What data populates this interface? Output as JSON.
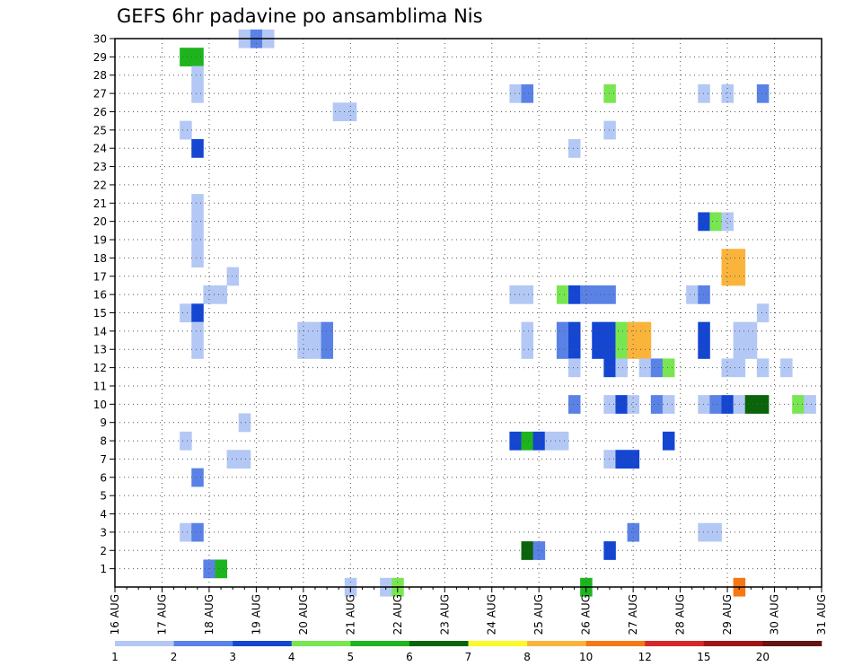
{
  "chart_data": {
    "type": "heatmap",
    "title": "GEFS 6hr padavine po ansamblima Nis",
    "xlabel": "",
    "ylabel": "",
    "x_tick_labels": [
      "16 AUG",
      "17 AUG",
      "18 AUG",
      "19 AUG",
      "20 AUG",
      "21 AUG",
      "22 AUG",
      "23 AUG",
      "24 AUG",
      "25 AUG",
      "26 AUG",
      "27 AUG",
      "28 AUG",
      "29 AUG",
      "30 AUG",
      "31 AUG"
    ],
    "x_range_days": [
      16,
      31
    ],
    "y_tick_labels": [
      "1",
      "2",
      "3",
      "4",
      "5",
      "6",
      "7",
      "8",
      "9",
      "10",
      "11",
      "12",
      "13",
      "14",
      "15",
      "16",
      "17",
      "18",
      "19",
      "20",
      "21",
      "22",
      "23",
      "24",
      "25",
      "26",
      "27",
      "28",
      "29",
      "30"
    ],
    "grid": true,
    "legend": {
      "placement": "bottom",
      "labels": [
        "1",
        "2",
        "3",
        "4",
        "5",
        "6",
        "7",
        "8",
        "10",
        "12",
        "15",
        "20"
      ],
      "colors": [
        "#b4c8f5",
        "#5a82e6",
        "#1446d2",
        "#78e650",
        "#1eb41e",
        "#0a640a",
        "#fafa28",
        "#fab43c",
        "#f57814",
        "#d72828",
        "#a01414",
        "#641414"
      ]
    },
    "cells_note_units": "x = forecast day (AUG, fractional, 6-hr step), y = ensemble member, level = legend color index",
    "cells": [
      {
        "x": 18.75,
        "y": 30,
        "level": 1
      },
      {
        "x": 19.0,
        "y": 30,
        "level": 2
      },
      {
        "x": 19.25,
        "y": 30,
        "level": 1
      },
      {
        "x": 17.5,
        "y": 29,
        "level": 5
      },
      {
        "x": 17.75,
        "y": 29,
        "level": 5
      },
      {
        "x": 17.75,
        "y": 28,
        "level": 1
      },
      {
        "x": 17.75,
        "y": 27,
        "level": 1
      },
      {
        "x": 24.5,
        "y": 27,
        "level": 1
      },
      {
        "x": 24.75,
        "y": 27,
        "level": 2
      },
      {
        "x": 26.5,
        "y": 27,
        "level": 4
      },
      {
        "x": 28.5,
        "y": 27,
        "level": 1
      },
      {
        "x": 29.0,
        "y": 27,
        "level": 1
      },
      {
        "x": 29.75,
        "y": 27,
        "level": 2
      },
      {
        "x": 20.75,
        "y": 26,
        "level": 1
      },
      {
        "x": 21.0,
        "y": 26,
        "level": 1
      },
      {
        "x": 17.5,
        "y": 25,
        "level": 1
      },
      {
        "x": 26.5,
        "y": 25,
        "level": 1
      },
      {
        "x": 17.75,
        "y": 24,
        "level": 3
      },
      {
        "x": 25.75,
        "y": 24,
        "level": 1
      },
      {
        "x": 17.75,
        "y": 21,
        "level": 1
      },
      {
        "x": 17.75,
        "y": 20,
        "level": 1
      },
      {
        "x": 28.5,
        "y": 20,
        "level": 3
      },
      {
        "x": 28.75,
        "y": 20,
        "level": 4
      },
      {
        "x": 29.0,
        "y": 20,
        "level": 1
      },
      {
        "x": 17.75,
        "y": 19,
        "level": 1
      },
      {
        "x": 17.75,
        "y": 18,
        "level": 1
      },
      {
        "x": 29.0,
        "y": 18,
        "level": 8
      },
      {
        "x": 29.25,
        "y": 18,
        "level": 8
      },
      {
        "x": 18.5,
        "y": 17,
        "level": 1
      },
      {
        "x": 29.0,
        "y": 17,
        "level": 8
      },
      {
        "x": 29.25,
        "y": 17,
        "level": 8
      },
      {
        "x": 18.0,
        "y": 16,
        "level": 1
      },
      {
        "x": 18.25,
        "y": 16,
        "level": 1
      },
      {
        "x": 24.5,
        "y": 16,
        "level": 1
      },
      {
        "x": 24.75,
        "y": 16,
        "level": 1
      },
      {
        "x": 25.5,
        "y": 16,
        "level": 4
      },
      {
        "x": 25.75,
        "y": 16,
        "level": 3
      },
      {
        "x": 26.0,
        "y": 16,
        "level": 2
      },
      {
        "x": 26.25,
        "y": 16,
        "level": 2
      },
      {
        "x": 26.5,
        "y": 16,
        "level": 2
      },
      {
        "x": 28.25,
        "y": 16,
        "level": 1
      },
      {
        "x": 28.5,
        "y": 16,
        "level": 2
      },
      {
        "x": 17.5,
        "y": 15,
        "level": 1
      },
      {
        "x": 17.75,
        "y": 15,
        "level": 3
      },
      {
        "x": 29.75,
        "y": 15,
        "level": 1
      },
      {
        "x": 17.75,
        "y": 14,
        "level": 1
      },
      {
        "x": 20.0,
        "y": 14,
        "level": 1
      },
      {
        "x": 20.25,
        "y": 14,
        "level": 1
      },
      {
        "x": 20.5,
        "y": 14,
        "level": 2
      },
      {
        "x": 24.75,
        "y": 14,
        "level": 1
      },
      {
        "x": 25.5,
        "y": 14,
        "level": 2
      },
      {
        "x": 25.75,
        "y": 14,
        "level": 3
      },
      {
        "x": 26.25,
        "y": 14,
        "level": 3
      },
      {
        "x": 26.5,
        "y": 14,
        "level": 3
      },
      {
        "x": 26.75,
        "y": 14,
        "level": 4
      },
      {
        "x": 27.0,
        "y": 14,
        "level": 8
      },
      {
        "x": 27.25,
        "y": 14,
        "level": 8
      },
      {
        "x": 28.5,
        "y": 14,
        "level": 3
      },
      {
        "x": 29.25,
        "y": 14,
        "level": 1
      },
      {
        "x": 29.5,
        "y": 14,
        "level": 1
      },
      {
        "x": 17.75,
        "y": 13,
        "level": 1
      },
      {
        "x": 20.0,
        "y": 13,
        "level": 1
      },
      {
        "x": 20.25,
        "y": 13,
        "level": 1
      },
      {
        "x": 20.5,
        "y": 13,
        "level": 2
      },
      {
        "x": 24.75,
        "y": 13,
        "level": 1
      },
      {
        "x": 25.5,
        "y": 13,
        "level": 2
      },
      {
        "x": 25.75,
        "y": 13,
        "level": 3
      },
      {
        "x": 26.25,
        "y": 13,
        "level": 3
      },
      {
        "x": 26.5,
        "y": 13,
        "level": 3
      },
      {
        "x": 26.75,
        "y": 13,
        "level": 4
      },
      {
        "x": 27.0,
        "y": 13,
        "level": 8
      },
      {
        "x": 27.25,
        "y": 13,
        "level": 8
      },
      {
        "x": 28.5,
        "y": 13,
        "level": 3
      },
      {
        "x": 29.25,
        "y": 13,
        "level": 1
      },
      {
        "x": 29.5,
        "y": 13,
        "level": 1
      },
      {
        "x": 25.75,
        "y": 12,
        "level": 1
      },
      {
        "x": 26.5,
        "y": 12,
        "level": 3
      },
      {
        "x": 26.75,
        "y": 12,
        "level": 1
      },
      {
        "x": 27.25,
        "y": 12,
        "level": 1
      },
      {
        "x": 27.5,
        "y": 12,
        "level": 2
      },
      {
        "x": 27.75,
        "y": 12,
        "level": 4
      },
      {
        "x": 29.0,
        "y": 12,
        "level": 1
      },
      {
        "x": 29.25,
        "y": 12,
        "level": 1
      },
      {
        "x": 29.75,
        "y": 12,
        "level": 1
      },
      {
        "x": 30.25,
        "y": 12,
        "level": 1
      },
      {
        "x": 25.75,
        "y": 10,
        "level": 2
      },
      {
        "x": 26.5,
        "y": 10,
        "level": 1
      },
      {
        "x": 26.75,
        "y": 10,
        "level": 3
      },
      {
        "x": 27.0,
        "y": 10,
        "level": 1
      },
      {
        "x": 27.5,
        "y": 10,
        "level": 2
      },
      {
        "x": 27.75,
        "y": 10,
        "level": 1
      },
      {
        "x": 28.5,
        "y": 10,
        "level": 1
      },
      {
        "x": 28.75,
        "y": 10,
        "level": 2
      },
      {
        "x": 29.0,
        "y": 10,
        "level": 3
      },
      {
        "x": 29.25,
        "y": 10,
        "level": 1
      },
      {
        "x": 29.5,
        "y": 10,
        "level": 6
      },
      {
        "x": 29.75,
        "y": 10,
        "level": 6
      },
      {
        "x": 30.5,
        "y": 10,
        "level": 4
      },
      {
        "x": 30.75,
        "y": 10,
        "level": 1
      },
      {
        "x": 18.75,
        "y": 9,
        "level": 1
      },
      {
        "x": 17.5,
        "y": 8,
        "level": 1
      },
      {
        "x": 24.5,
        "y": 8,
        "level": 3
      },
      {
        "x": 24.75,
        "y": 8,
        "level": 5
      },
      {
        "x": 25.0,
        "y": 8,
        "level": 3
      },
      {
        "x": 25.25,
        "y": 8,
        "level": 1
      },
      {
        "x": 25.5,
        "y": 8,
        "level": 1
      },
      {
        "x": 27.75,
        "y": 8,
        "level": 3
      },
      {
        "x": 18.5,
        "y": 7,
        "level": 1
      },
      {
        "x": 18.75,
        "y": 7,
        "level": 1
      },
      {
        "x": 26.5,
        "y": 7,
        "level": 1
      },
      {
        "x": 26.75,
        "y": 7,
        "level": 3
      },
      {
        "x": 27.0,
        "y": 7,
        "level": 3
      },
      {
        "x": 17.75,
        "y": 6,
        "level": 2
      },
      {
        "x": 17.5,
        "y": 3,
        "level": 1
      },
      {
        "x": 17.75,
        "y": 3,
        "level": 2
      },
      {
        "x": 27.0,
        "y": 3,
        "level": 2
      },
      {
        "x": 28.5,
        "y": 3,
        "level": 1
      },
      {
        "x": 28.75,
        "y": 3,
        "level": 1
      },
      {
        "x": 24.75,
        "y": 2,
        "level": 6
      },
      {
        "x": 25.0,
        "y": 2,
        "level": 2
      },
      {
        "x": 26.5,
        "y": 2,
        "level": 3
      },
      {
        "x": 18.0,
        "y": 1,
        "level": 2
      },
      {
        "x": 18.25,
        "y": 1,
        "level": 5
      },
      {
        "x": 21.0,
        "y": 0,
        "level": 1
      },
      {
        "x": 21.75,
        "y": 0,
        "level": 1
      },
      {
        "x": 22.0,
        "y": 0,
        "level": 4
      },
      {
        "x": 26.0,
        "y": 0,
        "level": 5
      },
      {
        "x": 29.25,
        "y": 0,
        "level": 9
      }
    ]
  }
}
